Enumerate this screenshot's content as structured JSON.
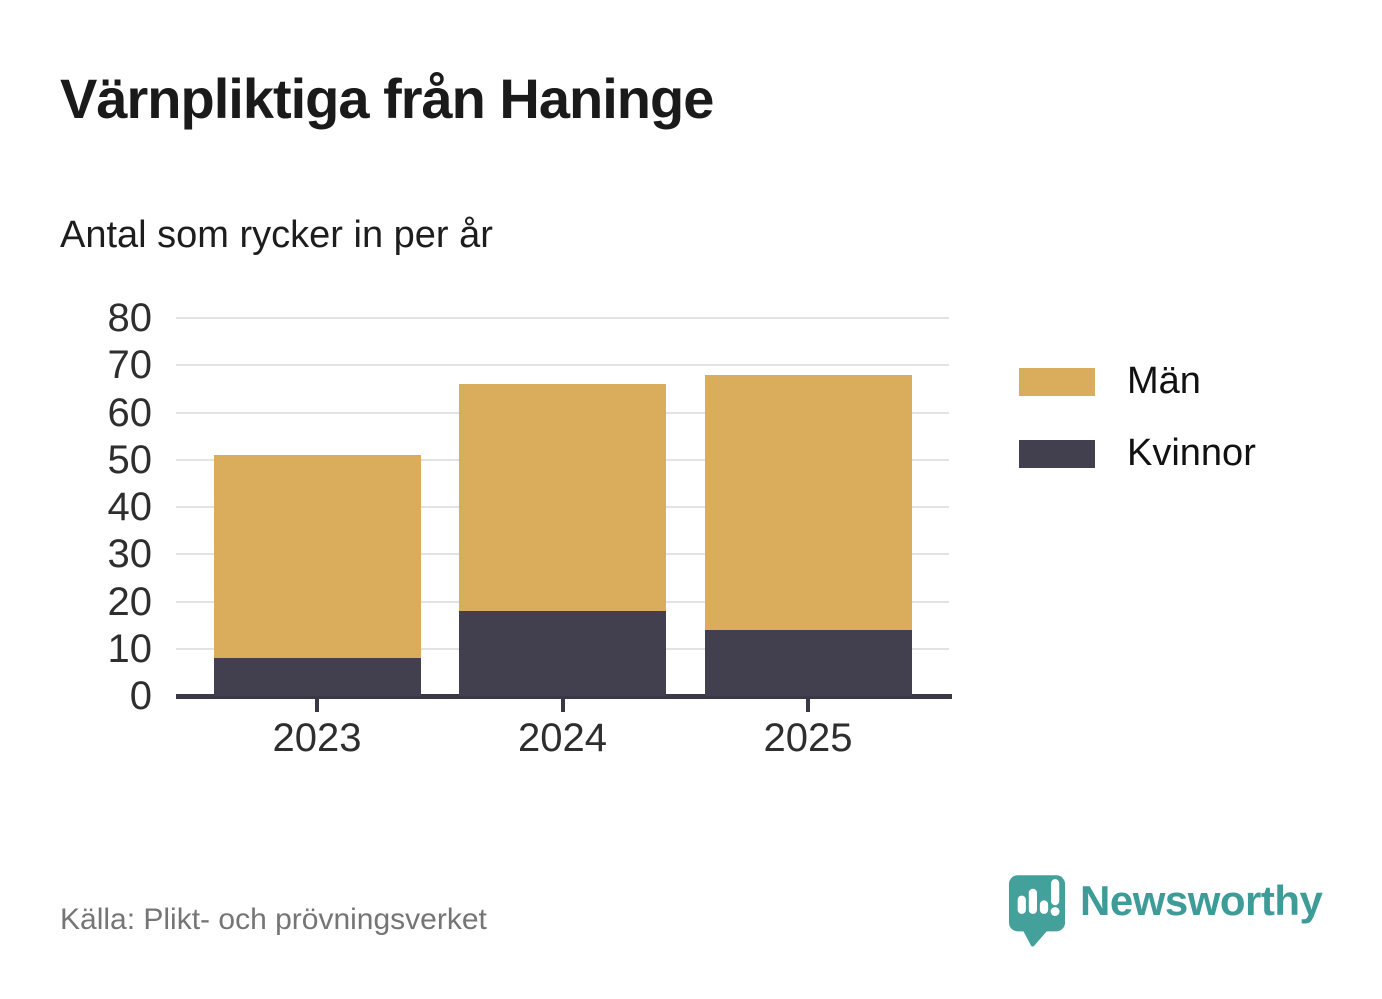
{
  "title": "Värnpliktiga från Haninge",
  "subtitle": "Antal som rycker in per år",
  "source": "Källa: Plikt- och prövningsverket",
  "brand": {
    "name": "Newsworthy",
    "color": "#3d9b98",
    "icon": "newsworthy-speech-bubble-bar-chart-icon"
  },
  "colors": {
    "men_series": "#DAAD5C",
    "women_series": "#42404E",
    "axis": "#3A3845",
    "gridline": "#E3E3E3",
    "tick_label": "#2E2E2E",
    "source_text": "#757575"
  },
  "chart_data": {
    "type": "bar",
    "stacked": true,
    "title": "Värnpliktiga från Haninge",
    "subtitle": "Antal som rycker in per år",
    "categories": [
      "2023",
      "2024",
      "2025"
    ],
    "series": [
      {
        "name": "Män",
        "color": "#DAAD5C",
        "values": [
          43,
          48,
          54
        ]
      },
      {
        "name": "Kvinnor",
        "color": "#42404E",
        "values": [
          8,
          18,
          14
        ]
      }
    ],
    "stack_order_bottom_to_top": [
      "Kvinnor",
      "Män"
    ],
    "totals": [
      51,
      66,
      68
    ],
    "xlabel": "",
    "ylabel": "",
    "ylim": [
      0,
      80
    ],
    "yticks": [
      0,
      10,
      20,
      30,
      40,
      50,
      60,
      70,
      80
    ],
    "grid": true,
    "legend_position": "right",
    "legend": [
      "Män",
      "Kvinnor"
    ]
  }
}
